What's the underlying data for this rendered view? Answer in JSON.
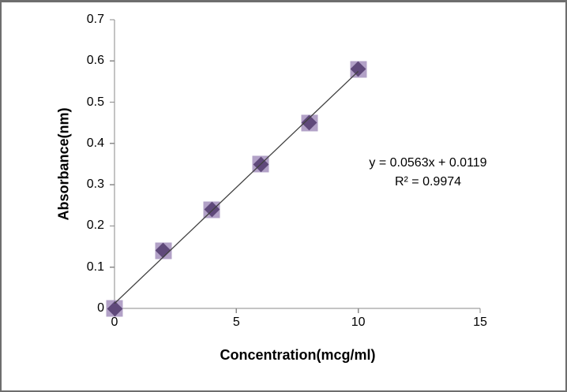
{
  "chart_data": {
    "type": "scatter",
    "title": "",
    "xlabel": "Concentration(mcg/ml)",
    "ylabel": "Absorbance(nm)",
    "x": [
      0,
      2,
      4,
      6,
      8,
      10
    ],
    "y": [
      0,
      0.14,
      0.24,
      0.35,
      0.45,
      0.58
    ],
    "xlim": [
      0,
      15
    ],
    "ylim": [
      0,
      0.7
    ],
    "x_tick_values": [
      0,
      5,
      10,
      15
    ],
    "x_tick_labels": [
      "0",
      "5",
      "10",
      "15"
    ],
    "y_tick_values": [
      0,
      0.1,
      0.2,
      0.3,
      0.4,
      0.5,
      0.6,
      0.7
    ],
    "y_tick_labels": [
      "0",
      "0.1",
      "0.2",
      "0.3",
      "0.4",
      "0.5",
      "0.6",
      "0.7"
    ],
    "grid": false,
    "legend": false,
    "trendline": {
      "slope": 0.0563,
      "intercept": 0.0119,
      "x_start": 0,
      "x_end": 10
    },
    "annotation": {
      "equation": "y = 0.0563x + 0.0119",
      "r_squared": "R² = 0.9974"
    },
    "colors": {
      "marker_diamond": "#5f497a",
      "marker_square": "#b2a1c7",
      "trendline": "#404040",
      "axis": "#8a8a8a",
      "text": "#000000",
      "frame_border": "#6e6e6e",
      "background": "#ffffff"
    }
  }
}
